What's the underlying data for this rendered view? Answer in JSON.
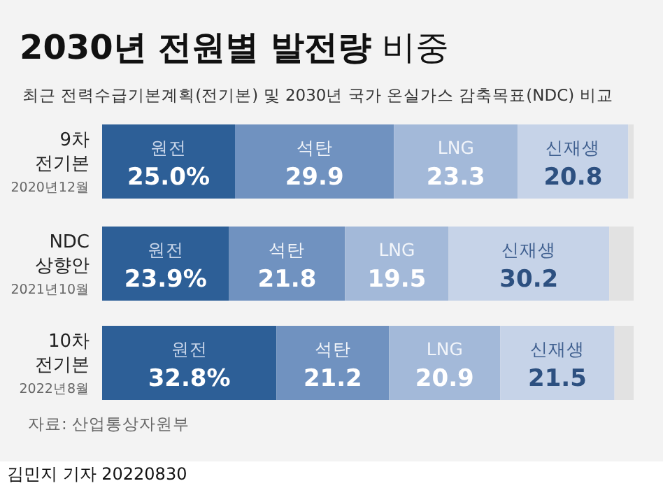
{
  "chart_data": {
    "type": "bar",
    "orientation": "horizontal",
    "stacked": true,
    "title": "**2030년 전원별 발전량** 비중",
    "subtitle": "최근 전력수급기본계획(전기본) 및 2030년 국가 온실가스 감축목표(NDC) 비교",
    "categories": [
      "9차 전기본",
      "NDC 상향안",
      "10차 전기본"
    ],
    "xlim": [
      0,
      100
    ],
    "tick_labels": "y",
    "series": [
      {
        "name": "원전",
        "color": "#2d5f97",
        "values": [
          25.0,
          23.9,
          32.8
        ],
        "value_labels": [
          "25.0%",
          "23.9%",
          "32.8%"
        ]
      },
      {
        "name": "석탄",
        "color": "#7092c0",
        "values": [
          29.9,
          21.8,
          21.2
        ],
        "value_labels": [
          "29.9",
          "21.8",
          "21.2"
        ]
      },
      {
        "name": "LNG",
        "color": "#a3b9d9",
        "values": [
          23.3,
          19.5,
          20.9
        ],
        "value_labels": [
          "23.3",
          "19.5",
          "20.9"
        ]
      },
      {
        "name": "신재생",
        "color": "#c6d3e8",
        "values": [
          20.8,
          30.2,
          21.5
        ],
        "value_labels": [
          "20.8",
          "30.2",
          "21.5"
        ]
      },
      {
        "color": "#e2e2e2",
        "values": [
          1.0,
          4.6,
          3.6
        ]
      }
    ],
    "annotations": [
      "2020년12월",
      "2021년10월",
      "2022년8월",
      "자료: 산업통상자원부",
      "김민지 기자 20220830"
    ]
  }
}
